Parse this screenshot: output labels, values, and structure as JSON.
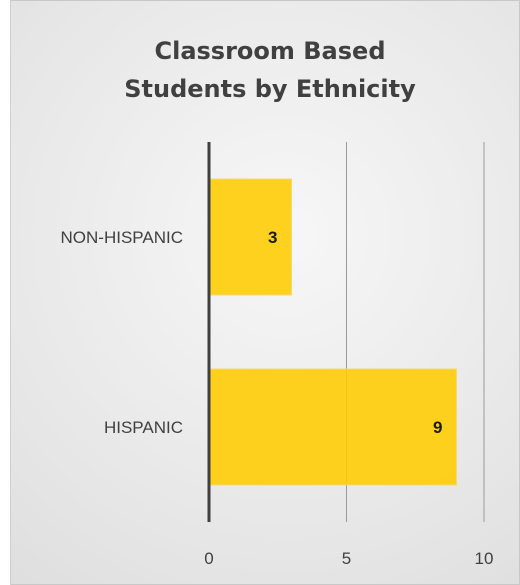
{
  "chart_data": {
    "type": "bar",
    "orientation": "horizontal",
    "title_lines": [
      "Classroom Based",
      "Students by Ethnicity"
    ],
    "categories": [
      "NON-HISPANIC",
      "HISPANIC"
    ],
    "values": [
      3,
      9
    ],
    "xlim": [
      0,
      10
    ],
    "xticks": [
      0,
      5,
      10
    ],
    "xlabel": "",
    "ylabel": "",
    "grid": true,
    "data_labels": true,
    "bar_color": "#FFCC00"
  }
}
